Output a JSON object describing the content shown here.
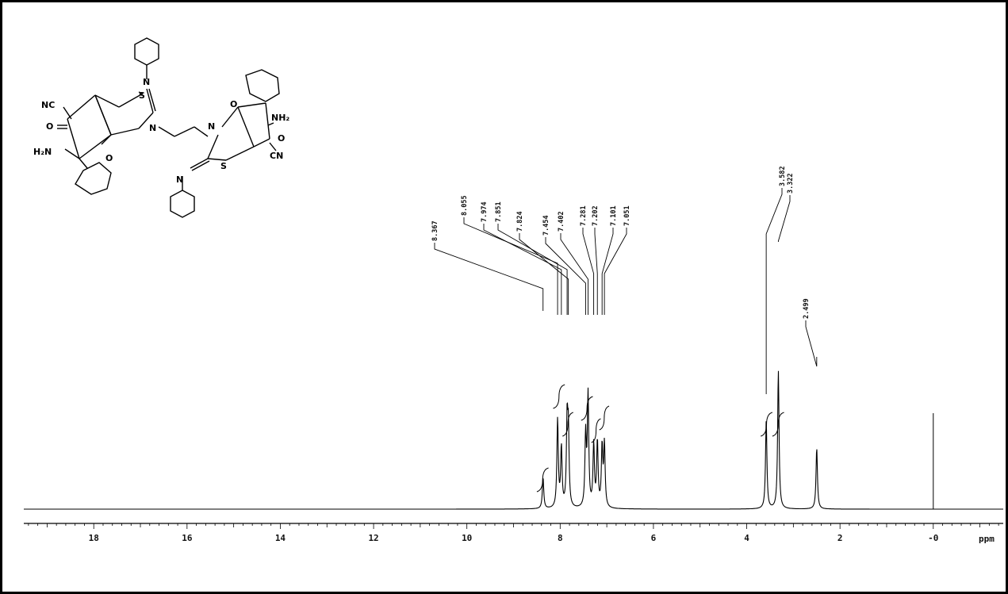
{
  "chart_data": {
    "type": "line",
    "xlabel": "ppm",
    "xlim": [
      19.5,
      -1.5
    ],
    "x_reversed": true,
    "x_ticks": [
      18,
      16,
      14,
      12,
      10,
      8,
      6,
      4,
      2,
      0
    ],
    "x_tick_labels": [
      "18",
      "16",
      "14",
      "12",
      "10",
      "8",
      "6",
      "4",
      "2",
      "-0"
    ],
    "peaks": [
      {
        "ppm": 8.367,
        "label": "8.367",
        "intensity": 0.22
      },
      {
        "ppm": 8.055,
        "label": "8.055",
        "intensity": 0.62
      },
      {
        "ppm": 7.974,
        "label": "7.974",
        "intensity": 0.42
      },
      {
        "ppm": 7.851,
        "label": "7.851",
        "intensity": 0.58
      },
      {
        "ppm": 7.824,
        "label": "7.824",
        "intensity": 0.5
      },
      {
        "ppm": 7.454,
        "label": "7.454",
        "intensity": 0.5
      },
      {
        "ppm": 7.402,
        "label": "7.402",
        "intensity": 0.78
      },
      {
        "ppm": 7.281,
        "label": "7.281",
        "intensity": 0.44
      },
      {
        "ppm": 7.202,
        "label": "7.202",
        "intensity": 0.46
      },
      {
        "ppm": 7.101,
        "label": "7.101",
        "intensity": 0.42
      },
      {
        "ppm": 7.051,
        "label": "7.051",
        "intensity": 0.44
      },
      {
        "ppm": 3.582,
        "label": "3.582",
        "intensity": 0.62
      },
      {
        "ppm": 3.322,
        "label": "3.322",
        "intensity": 0.97
      },
      {
        "ppm": 2.499,
        "label": "2.499",
        "intensity": 0.43
      },
      {
        "ppm": 0.0,
        "label": "",
        "intensity": 0.82
      }
    ],
    "integrals": [
      {
        "from": 8.5,
        "to": 8.25
      },
      {
        "from": 8.15,
        "to": 7.9
      },
      {
        "from": 7.95,
        "to": 7.72
      },
      {
        "from": 7.55,
        "to": 7.3
      },
      {
        "from": 7.33,
        "to": 7.13
      },
      {
        "from": 7.16,
        "to": 6.95
      },
      {
        "from": 3.7,
        "to": 3.45
      },
      {
        "from": 3.45,
        "to": 3.2
      }
    ]
  },
  "structure": {
    "labels": {
      "nc_left": "NC",
      "s_left": "S",
      "n_left": "N",
      "o_left": "O",
      "nh2_left": "H₂N",
      "o_bridge_left": "O",
      "n_imine_left": "N",
      "n_right": "N",
      "o_right": "O",
      "s_right": "S",
      "nh2_right": "NH₂",
      "o_bridge_right": "O",
      "cn_right": "CN",
      "n_imine_right": "N"
    }
  }
}
